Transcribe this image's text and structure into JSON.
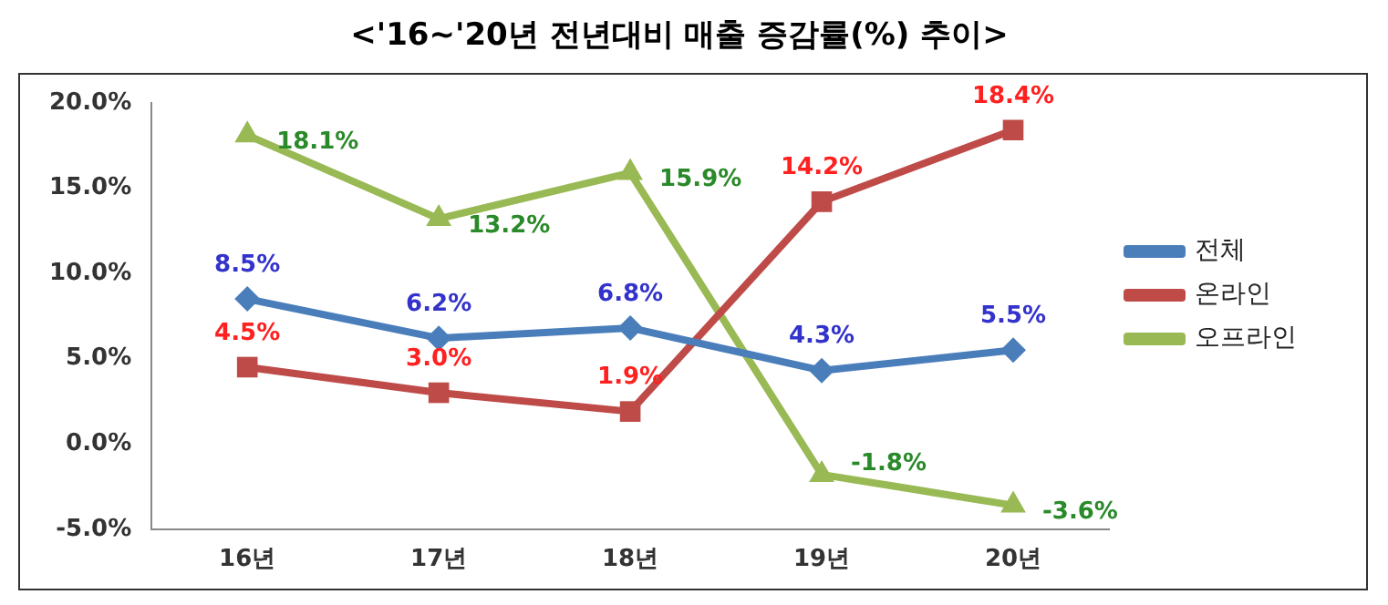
{
  "chart_data": {
    "type": "line",
    "title": "<'16~'20년 전년대비 매출 증감률(%) 추이>",
    "categories": [
      "16년",
      "17년",
      "18년",
      "19년",
      "20년"
    ],
    "series": [
      {
        "name": "전체",
        "color": "#4a7ebb",
        "marker": "diamond",
        "values": [
          8.5,
          6.2,
          6.8,
          4.3,
          5.5
        ],
        "value_labels": [
          "8.5%",
          "6.2%",
          "6.8%",
          "4.3%",
          "5.5%"
        ]
      },
      {
        "name": "온라인",
        "color": "#be4b48",
        "marker": "square",
        "values": [
          4.5,
          3.0,
          1.9,
          14.2,
          18.4
        ],
        "value_labels": [
          "4.5%",
          "3.0%",
          "1.9%",
          "14.2%",
          "18.4%"
        ]
      },
      {
        "name": "오프라인",
        "color": "#98b954",
        "marker": "triangle",
        "values": [
          18.1,
          13.2,
          15.9,
          -1.8,
          -3.6
        ],
        "value_labels": [
          "18.1%",
          "13.2%",
          "15.9%",
          "-1.8%",
          "-3.6%"
        ]
      }
    ],
    "ylim": [
      -5,
      20
    ],
    "yticks": [
      {
        "value": -5,
        "label": "-5.0%"
      },
      {
        "value": 0,
        "label": "0.0%"
      },
      {
        "value": 5,
        "label": "5.0%"
      },
      {
        "value": 10,
        "label": "10.0%"
      },
      {
        "value": 15,
        "label": "15.0%"
      },
      {
        "value": 20,
        "label": "20.0%"
      }
    ],
    "grid": false,
    "legend": "right"
  }
}
